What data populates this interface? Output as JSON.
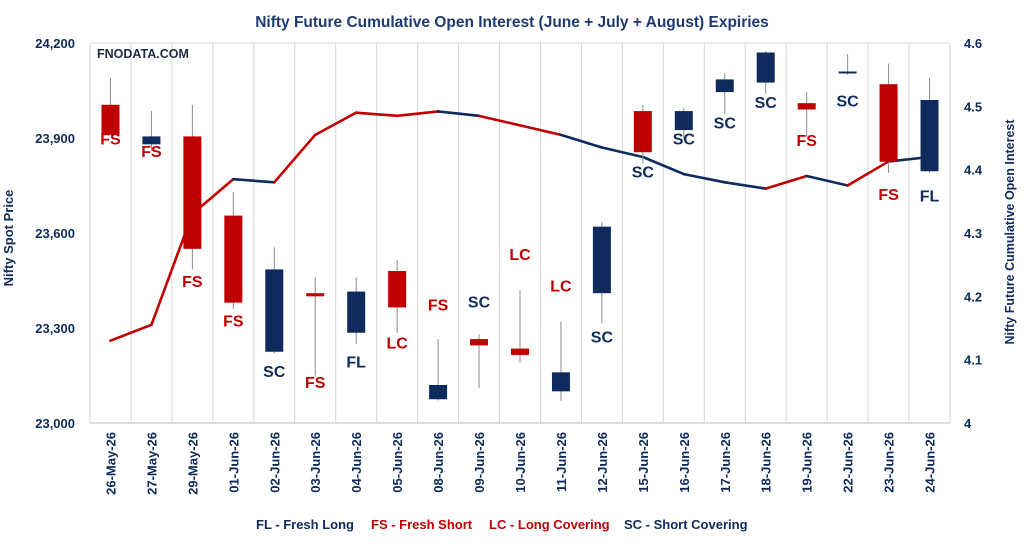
{
  "chart_data": {
    "type": "candlestick+line",
    "title": "Nifty Future Cumulative Open Interest (June + July + August) Expiries",
    "watermark": "FNODATA.COM",
    "ylabel_left": "Nifty Spot Price",
    "ylabel_right": "Nifty Future Cumulative Open Interest",
    "ylim_left": [
      23000,
      24200
    ],
    "yticks_left": [
      23000,
      23300,
      23600,
      23900,
      24200
    ],
    "yticks_left_labels": [
      "23,000",
      "23,300",
      "23,600",
      "23,900",
      "24,200"
    ],
    "ylim_right": [
      4,
      4.6
    ],
    "yticks_right": [
      4,
      4.1,
      4.2,
      4.3,
      4.4,
      4.5,
      4.6
    ],
    "yticks_right_labels": [
      "4",
      "4.1",
      "4.2",
      "4.3",
      "4.4",
      "4.5",
      "4.6"
    ],
    "grid": "vertical",
    "colors": {
      "navy": "#0f2a5c",
      "red": "#c00000",
      "grid": "#d4d4d4",
      "title": "#1f3a6e"
    },
    "categories": [
      "26-May-26",
      "27-May-26",
      "29-May-26",
      "01-Jun-26",
      "02-Jun-26",
      "03-Jun-26",
      "04-Jun-26",
      "05-Jun-26",
      "08-Jun-26",
      "09-Jun-26",
      "10-Jun-26",
      "11-Jun-26",
      "12-Jun-26",
      "15-Jun-26",
      "16-Jun-26",
      "17-Jun-26",
      "18-Jun-26",
      "19-Jun-26",
      "22-Jun-26",
      "23-Jun-26",
      "24-Jun-26"
    ],
    "candles": [
      {
        "open": 24005,
        "high": 24090,
        "low": 23915,
        "close": 23910
      },
      {
        "open": 23880,
        "high": 23985,
        "low": 23860,
        "close": 23905
      },
      {
        "open": 23905,
        "high": 24005,
        "low": 23485,
        "close": 23550
      },
      {
        "open": 23655,
        "high": 23730,
        "low": 23360,
        "close": 23380
      },
      {
        "open": 23225,
        "high": 23555,
        "low": 23220,
        "close": 23485
      },
      {
        "open": 23410,
        "high": 23460,
        "low": 23150,
        "close": 23400
      },
      {
        "open": 23285,
        "high": 23460,
        "low": 23250,
        "close": 23415
      },
      {
        "open": 23480,
        "high": 23515,
        "low": 23285,
        "close": 23365
      },
      {
        "open": 23075,
        "high": 23265,
        "low": 23070,
        "close": 23120
      },
      {
        "open": 23265,
        "high": 23280,
        "low": 23110,
        "close": 23245
      },
      {
        "open": 23235,
        "high": 23420,
        "low": 23190,
        "close": 23215
      },
      {
        "open": 23100,
        "high": 23320,
        "low": 23070,
        "close": 23160
      },
      {
        "open": 23410,
        "high": 23635,
        "low": 23315,
        "close": 23620
      },
      {
        "open": 23985,
        "high": 24005,
        "low": 23820,
        "close": 23855
      },
      {
        "open": 23925,
        "high": 23995,
        "low": 23895,
        "close": 23985
      },
      {
        "open": 24045,
        "high": 24105,
        "low": 23975,
        "close": 24085
      },
      {
        "open": 24075,
        "high": 24175,
        "low": 24040,
        "close": 24170
      },
      {
        "open": 24010,
        "high": 24045,
        "low": 23905,
        "close": 23990
      },
      {
        "open": 24110,
        "high": 24165,
        "low": 24100,
        "close": 24110
      },
      {
        "open": 24070,
        "high": 24135,
        "low": 23790,
        "close": 23825
      },
      {
        "open": 23795,
        "high": 24090,
        "low": 23790,
        "close": 24020
      }
    ],
    "oi_series": {
      "values": [
        4.13,
        4.155,
        4.33,
        4.385,
        4.38,
        4.455,
        4.49,
        4.485,
        4.492,
        4.485,
        4.47,
        4.455,
        4.435,
        4.42,
        4.393,
        4.38,
        4.37,
        4.39,
        4.375,
        4.413,
        4.42
      ],
      "segment_colors": [
        "red",
        "red",
        "red",
        "navy",
        "red",
        "red",
        "red",
        "red",
        "navy",
        "red",
        "red",
        "navy",
        "navy",
        "navy",
        "navy",
        "navy",
        "red",
        "navy",
        "red",
        "navy"
      ]
    },
    "annotations": [
      {
        "text": "FS",
        "color": "red",
        "y": 23880
      },
      {
        "text": "FS",
        "color": "red",
        "y": 23840
      },
      {
        "text": "FS",
        "color": "red",
        "y": 23430
      },
      {
        "text": "FS",
        "color": "red",
        "y": 23305
      },
      {
        "text": "SC",
        "color": "navy",
        "y": 23145
      },
      {
        "text": "FS",
        "color": "red",
        "y": 23110
      },
      {
        "text": "FL",
        "color": "navy",
        "y": 23175
      },
      {
        "text": "LC",
        "color": "red",
        "y": 23235
      },
      {
        "text": "FS",
        "color": "red",
        "y": 23355
      },
      {
        "text": "SC",
        "color": "navy",
        "y": 23365
      },
      {
        "text": "LC",
        "color": "red",
        "y": 23515
      },
      {
        "text": "LC",
        "color": "red",
        "y": 23415
      },
      {
        "text": "SC",
        "color": "navy",
        "y": 23255
      },
      {
        "text": "SC",
        "color": "navy",
        "y": 23775
      },
      {
        "text": "SC",
        "color": "navy",
        "y": 23880
      },
      {
        "text": "SC",
        "color": "navy",
        "y": 23930
      },
      {
        "text": "SC",
        "color": "navy",
        "y": 23995
      },
      {
        "text": "FS",
        "color": "red",
        "y": 23875
      },
      {
        "text": "SC",
        "color": "navy",
        "y": 24000
      },
      {
        "text": "FS",
        "color": "red",
        "y": 23705
      },
      {
        "text": "FL",
        "color": "navy",
        "y": 23700
      }
    ],
    "legend": [
      {
        "text": "FL - Fresh Long",
        "color": "navy"
      },
      {
        "text": "FS - Fresh Short",
        "color": "red"
      },
      {
        "text": "LC - Long Covering",
        "color": "red"
      },
      {
        "text": "SC - Short Covering",
        "color": "navy"
      }
    ]
  }
}
